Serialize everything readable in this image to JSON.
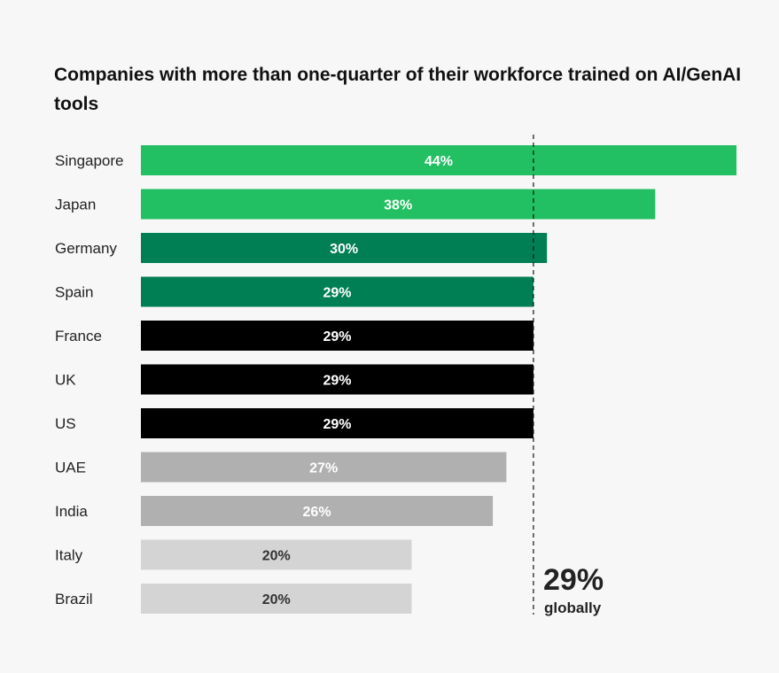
{
  "chart_data": {
    "type": "bar",
    "orientation": "horizontal",
    "title": "Companies with more than one-quarter of their workforce trained on AI/GenAI tools",
    "categories": [
      "Singapore",
      "Japan",
      "Germany",
      "Spain",
      "France",
      "UK",
      "US",
      "UAE",
      "India",
      "Italy",
      "Brazil"
    ],
    "values": [
      44,
      38,
      30,
      29,
      29,
      29,
      29,
      27,
      26,
      20,
      20
    ],
    "value_labels": [
      "44%",
      "38%",
      "30%",
      "29%",
      "29%",
      "29%",
      "29%",
      "27%",
      "26%",
      "20%",
      "20%"
    ],
    "bar_colors": [
      "#22c063",
      "#22c063",
      "#007f54",
      "#007f54",
      "#000000",
      "#000000",
      "#000000",
      "#b0b0b0",
      "#b0b0b0",
      "#d4d4d4",
      "#d4d4d4"
    ],
    "label_colors": [
      "#ffffff",
      "#ffffff",
      "#ffffff",
      "#ffffff",
      "#ffffff",
      "#ffffff",
      "#ffffff",
      "#ffffff",
      "#ffffff",
      "#333333",
      "#333333"
    ],
    "xlim": [
      0,
      44
    ],
    "grid": false,
    "reference_line": {
      "value": 29,
      "label": "29%",
      "sublabel": "globally",
      "style": "dashed"
    }
  }
}
